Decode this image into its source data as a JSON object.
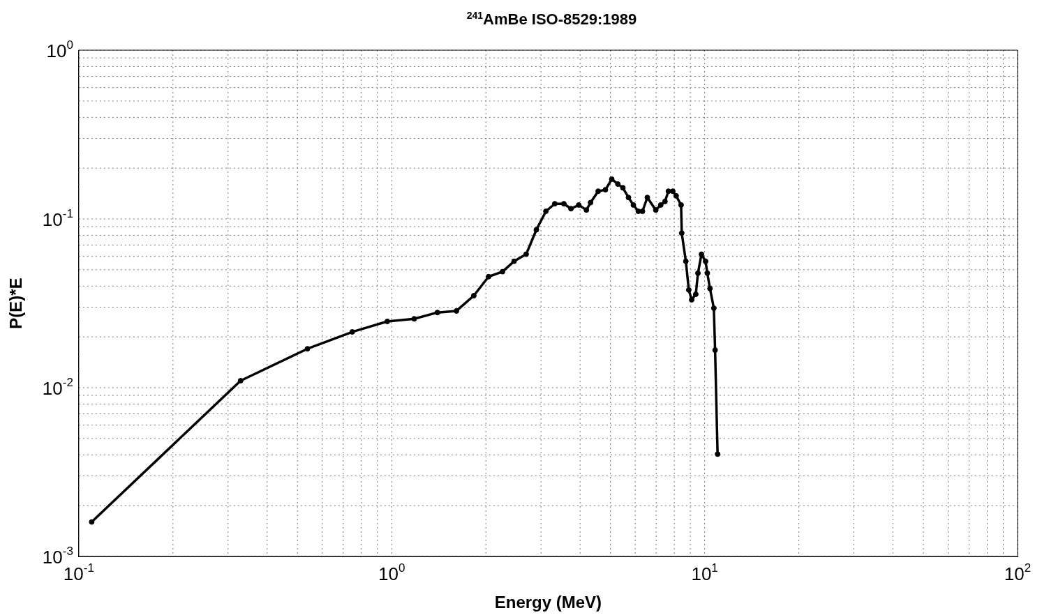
{
  "chart_data": {
    "type": "line",
    "title": "$^{241}$AmBe ISO-8529:1989",
    "xlabel": "Energy (MeV)",
    "ylabel": "P(E)*E",
    "log": "xy",
    "grid": true,
    "marker": "circle",
    "line_style": "solid",
    "legend": false,
    "xlim": [
      0.1,
      100
    ],
    "ylim": [
      0.001,
      1
    ],
    "xticks": [
      {
        "value": 0.1,
        "label": "10$^{-1}$"
      },
      {
        "value": 1,
        "label": "10$^{0}$"
      },
      {
        "value": 10,
        "label": "10$^{1}$"
      },
      {
        "value": 100,
        "label": "10$^{2}$"
      }
    ],
    "yticks": [
      {
        "value": 0.001,
        "label": "10$^{-3}$"
      },
      {
        "value": 0.01,
        "label": "10$^{-2}$"
      },
      {
        "value": 0.1,
        "label": "10$^{-1}$"
      },
      {
        "value": 1,
        "label": "10$^{0}$"
      }
    ],
    "series": [
      {
        "color": "#000000",
        "x": [
          0.11,
          0.329,
          0.538,
          0.748,
          0.968,
          1.18,
          1.4,
          1.61,
          1.83,
          2.04,
          2.26,
          2.46,
          2.69,
          2.9,
          3.11,
          3.32,
          3.55,
          3.74,
          3.96,
          4.19,
          4.32,
          4.57,
          4.82,
          5.05,
          5.28,
          5.48,
          5.71,
          5.92,
          6.14,
          6.33,
          6.56,
          6.98,
          7.24,
          7.47,
          7.66,
          7.91,
          8.11,
          8.41,
          8.45,
          8.71,
          8.9,
          9.09,
          9.37,
          9.52,
          9.77,
          10.07,
          10.2,
          10.4,
          10.7,
          10.8,
          11.0
        ],
        "values": [
          0.0016,
          0.011,
          0.017,
          0.0214,
          0.0247,
          0.0256,
          0.0279,
          0.0285,
          0.0351,
          0.0455,
          0.0487,
          0.0561,
          0.0618,
          0.0863,
          0.111,
          0.123,
          0.123,
          0.115,
          0.121,
          0.113,
          0.125,
          0.146,
          0.149,
          0.172,
          0.161,
          0.153,
          0.134,
          0.121,
          0.111,
          0.111,
          0.134,
          0.113,
          0.121,
          0.127,
          0.146,
          0.146,
          0.137,
          0.121,
          0.0824,
          0.0561,
          0.038,
          0.0332,
          0.0358,
          0.0477,
          0.0618,
          0.0561,
          0.0477,
          0.0387,
          0.0296,
          0.0167,
          0.00404
        ]
      }
    ]
  }
}
